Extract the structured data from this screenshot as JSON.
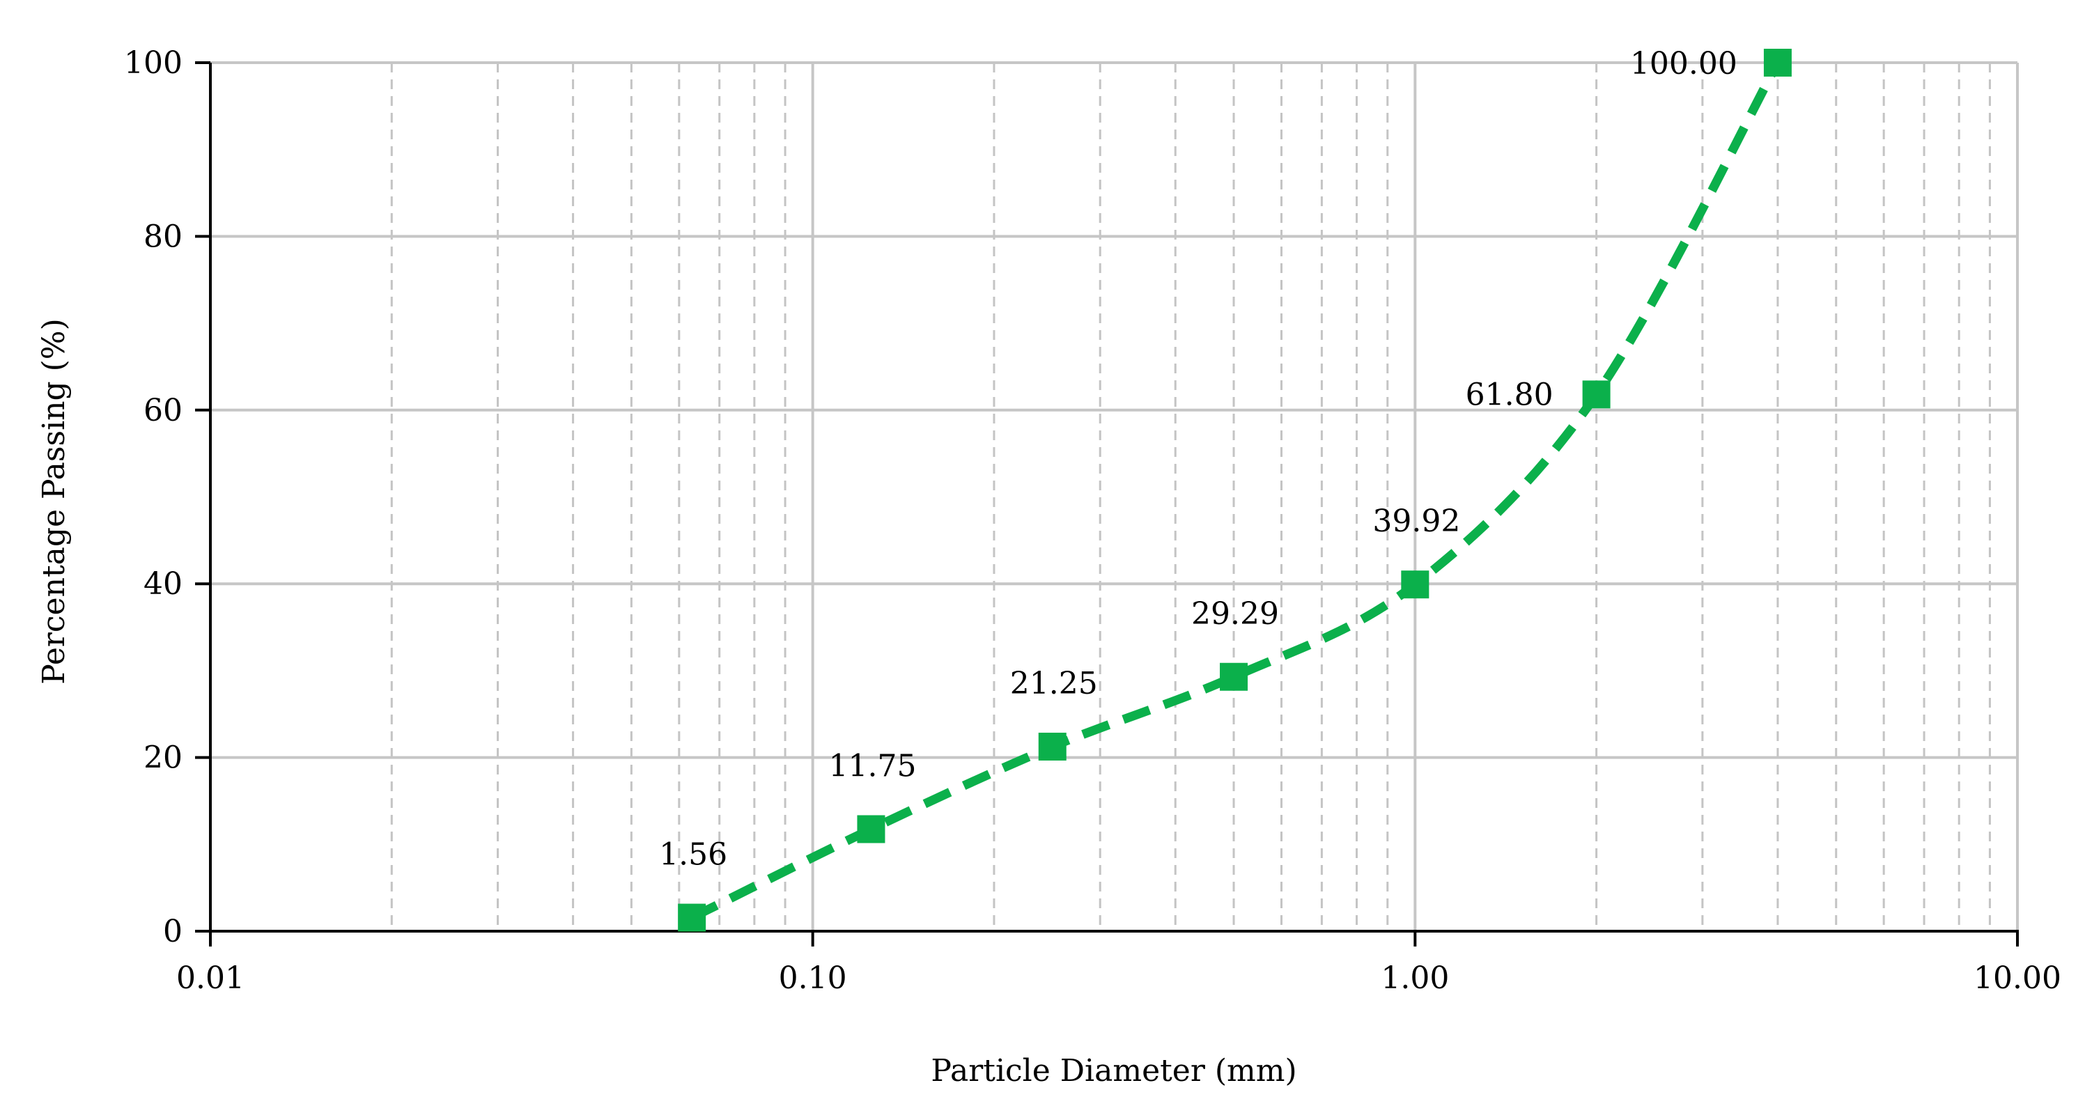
{
  "chart_data": {
    "type": "line",
    "title": "",
    "xlabel": "Particle Diameter (mm)",
    "ylabel": "Percentage Passing (%)",
    "x_scale": "log",
    "xlim": [
      0.01,
      10
    ],
    "ylim": [
      0,
      100
    ],
    "x_ticks": [
      "0.01",
      "0.10",
      "1.00",
      "10.00"
    ],
    "y_ticks": [
      "0",
      "20",
      "40",
      "60",
      "80",
      "100"
    ],
    "grid": {
      "major": true,
      "minor_x": true
    },
    "series": [
      {
        "x": [
          0.063,
          0.125,
          0.25,
          0.5,
          1.0,
          2.0,
          4.0
        ],
        "values": [
          1.56,
          11.75,
          21.25,
          29.29,
          39.92,
          61.8,
          100.0
        ],
        "labels": [
          "1.56",
          "11.75",
          "21.25",
          "29.29",
          "39.92",
          "61.80",
          "100.00"
        ],
        "color": "#0bb04b",
        "line_style": "dashed",
        "marker": "square"
      }
    ]
  }
}
